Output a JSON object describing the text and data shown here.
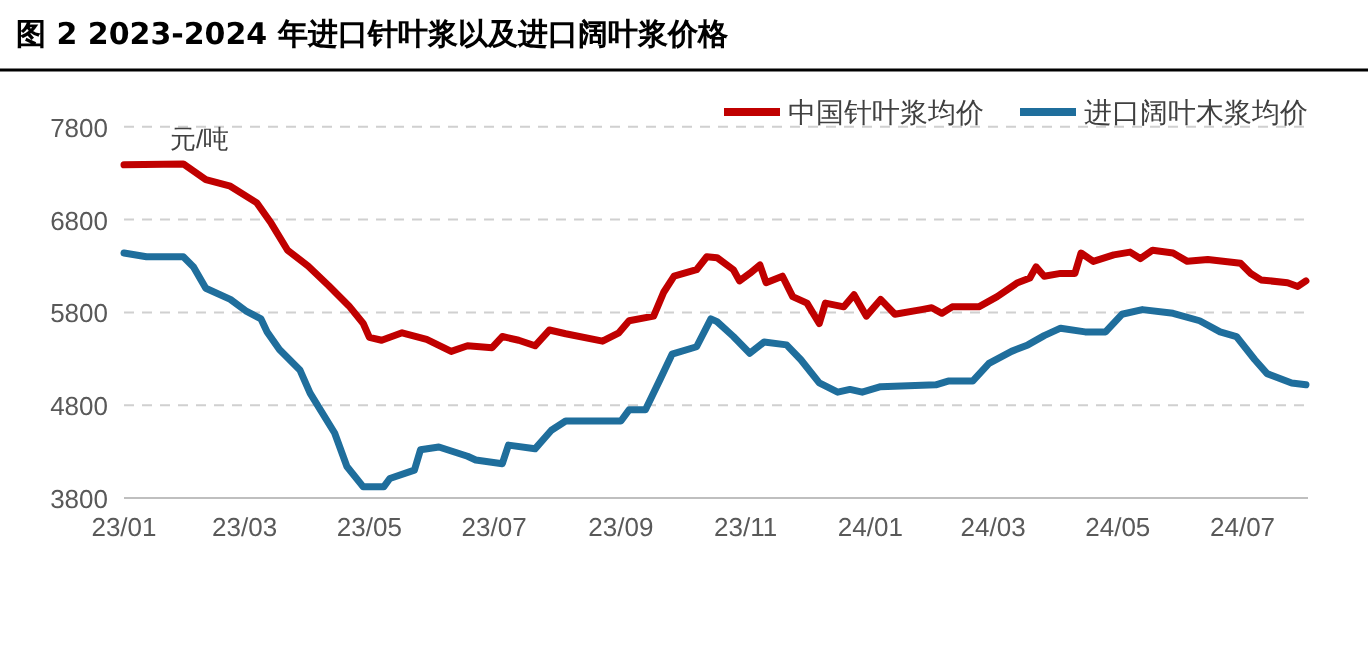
{
  "chart_data": {
    "type": "line",
    "title": "图 2 2023-2024 年进口针叶浆以及进口阔叶浆价格",
    "ylabel": "元/吨",
    "legend": "top right",
    "grid": "y",
    "line_style": "solid",
    "marker": "none",
    "xlim": [
      "2023-01-01",
      "2024-08-02"
    ],
    "ylim": [
      3800,
      7800
    ],
    "yticks": [
      3800,
      4800,
      5800,
      6800,
      7800
    ],
    "xticks": [
      {
        "value": "2023-01-01",
        "label": "23/01"
      },
      {
        "value": "2023-03-01",
        "label": "23/03"
      },
      {
        "value": "2023-05-01",
        "label": "23/05"
      },
      {
        "value": "2023-07-01",
        "label": "23/07"
      },
      {
        "value": "2023-09-01",
        "label": "23/09"
      },
      {
        "value": "2023-11-01",
        "label": "23/11"
      },
      {
        "value": "2024-01-01",
        "label": "24/01"
      },
      {
        "value": "2024-03-01",
        "label": "24/03"
      },
      {
        "value": "2024-05-01",
        "label": "24/05"
      },
      {
        "value": "2024-07-01",
        "label": "24/07"
      }
    ],
    "series": [
      {
        "name": "中国针叶浆均价",
        "color": "#c00000",
        "x": [
          "2023-01-01",
          "2023-01-30",
          "2023-02-10",
          "2023-02-22",
          "2023-03-07",
          "2023-03-14",
          "2023-03-22",
          "2023-04-01",
          "2023-04-11",
          "2023-04-21",
          "2023-04-28",
          "2023-05-01",
          "2023-05-07",
          "2023-05-17",
          "2023-05-29",
          "2023-06-10",
          "2023-06-18",
          "2023-06-30",
          "2023-07-05",
          "2023-07-13",
          "2023-07-21",
          "2023-07-28",
          "2023-08-05",
          "2023-08-23",
          "2023-08-31",
          "2023-09-05",
          "2023-09-17",
          "2023-09-22",
          "2023-09-27",
          "2023-10-08",
          "2023-10-13",
          "2023-10-18",
          "2023-10-26",
          "2023-10-29",
          "2023-11-03",
          "2023-11-08",
          "2023-11-11",
          "2023-11-19",
          "2023-11-24",
          "2023-12-01",
          "2023-12-07",
          "2023-12-10",
          "2023-12-19",
          "2023-12-24",
          "2023-12-30",
          "2024-01-06",
          "2024-01-13",
          "2024-01-26",
          "2024-01-31",
          "2024-02-05",
          "2024-02-10",
          "2024-02-23",
          "2024-03-03",
          "2024-03-13",
          "2024-03-19",
          "2024-03-22",
          "2024-03-26",
          "2024-04-03",
          "2024-04-10",
          "2024-04-13",
          "2024-04-19",
          "2024-04-29",
          "2024-05-07",
          "2024-05-12",
          "2024-05-18",
          "2024-05-28",
          "2024-06-04",
          "2024-06-14",
          "2024-06-30",
          "2024-07-05",
          "2024-07-10",
          "2024-07-23",
          "2024-07-28",
          "2024-08-01"
        ],
        "values": [
          7390,
          7400,
          7230,
          7160,
          6980,
          6760,
          6470,
          6300,
          6090,
          5870,
          5680,
          5530,
          5500,
          5580,
          5510,
          5380,
          5440,
          5420,
          5540,
          5500,
          5440,
          5610,
          5570,
          5490,
          5580,
          5710,
          5760,
          6020,
          6190,
          6260,
          6400,
          6390,
          6260,
          6140,
          6220,
          6310,
          6120,
          6190,
          5970,
          5900,
          5680,
          5900,
          5860,
          5990,
          5760,
          5940,
          5780,
          5830,
          5850,
          5790,
          5860,
          5860,
          5970,
          6120,
          6170,
          6290,
          6190,
          6220,
          6220,
          6440,
          6350,
          6420,
          6450,
          6380,
          6470,
          6440,
          6350,
          6370,
          6330,
          6220,
          6150,
          6120,
          6080,
          6140
        ]
      },
      {
        "name": "进口阔叶木浆均价",
        "color": "#1f6e9c",
        "x": [
          "2023-01-01",
          "2023-01-12",
          "2023-01-30",
          "2023-02-04",
          "2023-02-10",
          "2023-02-22",
          "2023-03-02",
          "2023-03-09",
          "2023-03-12",
          "2023-03-18",
          "2023-03-28",
          "2023-04-02",
          "2023-04-14",
          "2023-04-20",
          "2023-04-28",
          "2023-05-08",
          "2023-05-11",
          "2023-05-23",
          "2023-05-26",
          "2023-06-04",
          "2023-06-18",
          "2023-06-22",
          "2023-07-05",
          "2023-07-08",
          "2023-07-21",
          "2023-07-29",
          "2023-08-05",
          "2023-09-01",
          "2023-09-05",
          "2023-09-13",
          "2023-09-20",
          "2023-09-26",
          "2023-10-08",
          "2023-10-15",
          "2023-10-18",
          "2023-10-26",
          "2023-11-03",
          "2023-11-10",
          "2023-11-21",
          "2023-11-28",
          "2023-12-07",
          "2023-12-16",
          "2023-12-22",
          "2023-12-28",
          "2024-01-06",
          "2024-02-02",
          "2024-02-08",
          "2024-02-20",
          "2024-02-28",
          "2024-03-10",
          "2024-03-18",
          "2024-03-26",
          "2024-04-03",
          "2024-04-15",
          "2024-04-25",
          "2024-05-03",
          "2024-05-13",
          "2024-05-28",
          "2024-06-10",
          "2024-06-20",
          "2024-06-28",
          "2024-07-07",
          "2024-07-13",
          "2024-07-25",
          "2024-08-01"
        ],
        "values": [
          6440,
          6400,
          6400,
          6290,
          6060,
          5940,
          5810,
          5730,
          5590,
          5400,
          5180,
          4930,
          4500,
          4140,
          3920,
          3920,
          4010,
          4100,
          4320,
          4350,
          4250,
          4210,
          4170,
          4370,
          4330,
          4530,
          4630,
          4630,
          4750,
          4750,
          5070,
          5350,
          5430,
          5730,
          5700,
          5540,
          5360,
          5480,
          5450,
          5290,
          5040,
          4940,
          4970,
          4940,
          5000,
          5020,
          5060,
          5060,
          5250,
          5380,
          5450,
          5550,
          5630,
          5590,
          5590,
          5780,
          5830,
          5790,
          5710,
          5590,
          5540,
          5290,
          5140,
          5040,
          5020
        ]
      }
    ]
  }
}
